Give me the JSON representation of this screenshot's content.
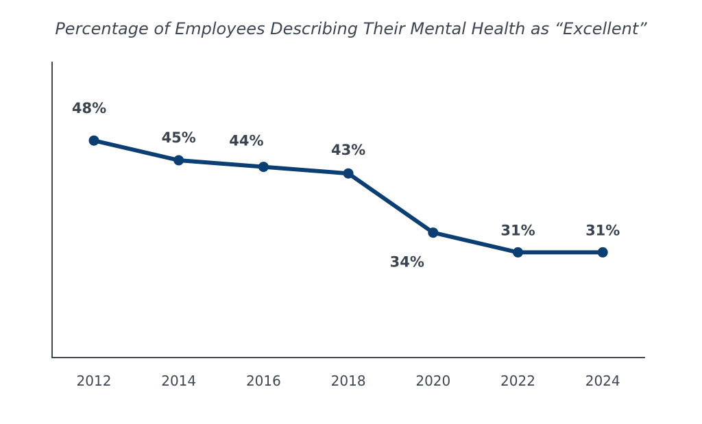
{
  "chart_data": {
    "type": "line",
    "title": "Percentage of Employees Describing Their Mental Health as “Excellent”",
    "xlabel": "",
    "ylabel": "",
    "categories": [
      "2012",
      "2014",
      "2016",
      "2018",
      "2020",
      "2022",
      "2024"
    ],
    "series": [
      {
        "values": [
          48,
          45,
          44,
          43,
          34,
          31,
          31
        ],
        "data_labels": [
          "48%",
          "45%",
          "44%",
          "43%",
          "34%",
          "31%",
          "31%"
        ]
      }
    ],
    "ylim": [
      15,
      60
    ],
    "grid": false,
    "y_axis_ticks_shown": false,
    "colors": {
      "line": "#0b3e72",
      "text": "#3a4350"
    }
  }
}
